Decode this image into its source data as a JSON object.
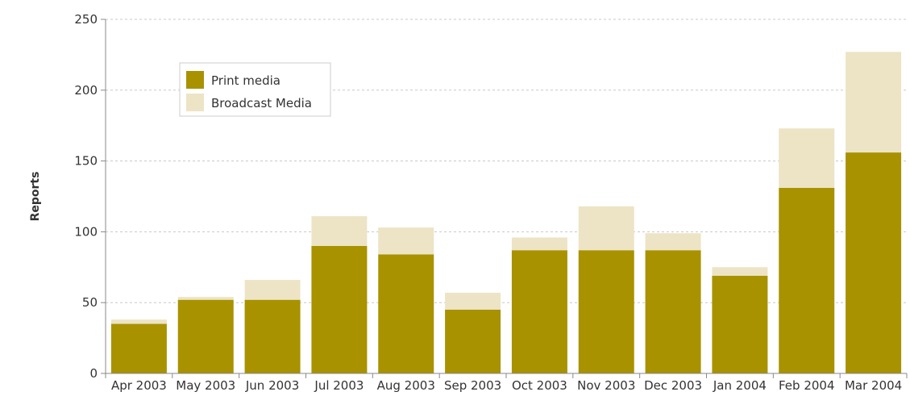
{
  "chart_data": {
    "type": "bar",
    "stacked": true,
    "title": "",
    "xlabel": "",
    "ylabel": "Reports",
    "ylim": [
      0,
      250
    ],
    "yticks": [
      0,
      50,
      100,
      150,
      200,
      250
    ],
    "grid": "horizontal dashed",
    "legend_position": "top-left",
    "categories": [
      "Apr 2003",
      "May 2003",
      "Jun 2003",
      "Jul 2003",
      "Aug 2003",
      "Sep 2003",
      "Oct 2003",
      "Nov 2003",
      "Dec 2003",
      "Jan 2004",
      "Feb 2004",
      "Mar 2004"
    ],
    "series": [
      {
        "name": "Print media",
        "color": "#a89200",
        "values": [
          35,
          52,
          52,
          90,
          84,
          45,
          87,
          87,
          87,
          69,
          131,
          156
        ]
      },
      {
        "name": "Broadcast Media",
        "color": "#ece4c5",
        "values": [
          3,
          2,
          14,
          21,
          19,
          12,
          9,
          31,
          12,
          6,
          42,
          71
        ]
      }
    ]
  }
}
